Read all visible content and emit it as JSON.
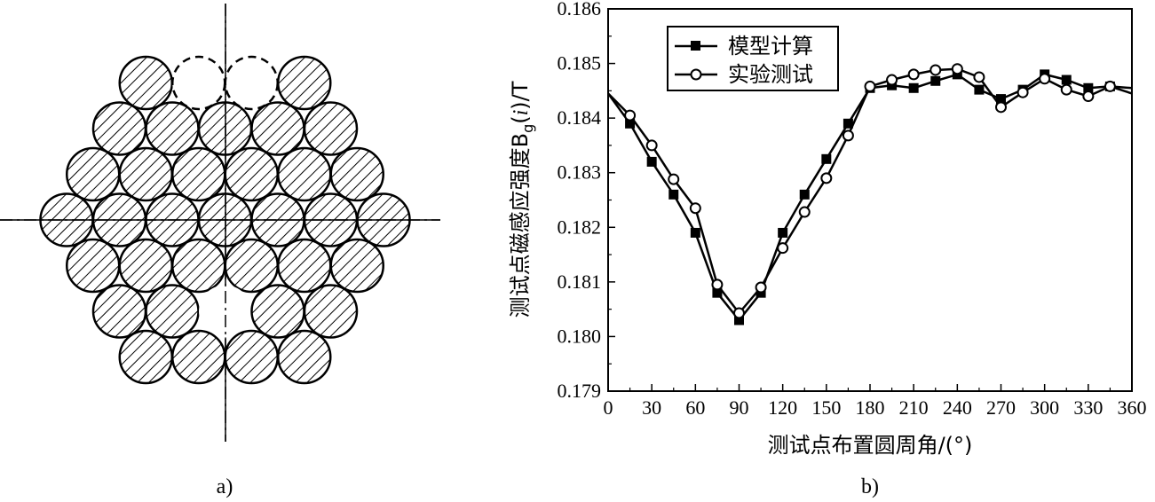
{
  "captions": {
    "left": "a)",
    "right": "b)"
  },
  "diagram": {
    "conductor_rows": [
      {
        "count": 4,
        "dashed": [
          1,
          2
        ],
        "blank": []
      },
      {
        "count": 5,
        "dashed": [],
        "blank": []
      },
      {
        "count": 6,
        "dashed": [],
        "blank": []
      },
      {
        "count": 7,
        "dashed": [],
        "blank": []
      },
      {
        "count": 6,
        "dashed": [],
        "blank": []
      },
      {
        "count": 5,
        "dashed": [],
        "blank": [
          2
        ]
      },
      {
        "count": 4,
        "dashed": [],
        "blank": []
      }
    ]
  },
  "chart_data": {
    "type": "line",
    "ylabel": "测试点磁感应强度B",
    "ylabel_sub": "g",
    "ylabel_paren_open": "(",
    "ylabel_var": "i",
    "ylabel_paren_close": ")/T",
    "xlabel": "测试点布置圆周角/(°)",
    "xlim": [
      0,
      360
    ],
    "ylim": [
      0.179,
      0.186
    ],
    "xticks": [
      0,
      30,
      60,
      90,
      120,
      150,
      180,
      210,
      240,
      270,
      300,
      330,
      360
    ],
    "xtick_labels": [
      "0",
      "30",
      "60",
      "90",
      "120",
      "150",
      "180",
      "210",
      "240",
      "270",
      "300",
      "330",
      "360"
    ],
    "yticks": [
      0.179,
      0.18,
      0.181,
      0.182,
      0.183,
      0.184,
      0.185,
      0.186
    ],
    "ytick_labels": [
      "0.179",
      "0.180",
      "0.181",
      "0.182",
      "0.183",
      "0.184",
      "0.185",
      "0.186"
    ],
    "grid": false,
    "legend_position": "top-left",
    "series": [
      {
        "name": "模型计算",
        "marker": "filled-square",
        "x": [
          0,
          15,
          30,
          45,
          60,
          75,
          90,
          105,
          120,
          135,
          150,
          165,
          180,
          195,
          210,
          225,
          240,
          255,
          270,
          285,
          300,
          315,
          330,
          345,
          360
        ],
        "y": [
          0.18445,
          0.1839,
          0.1832,
          0.1826,
          0.1819,
          0.1808,
          0.1803,
          0.1808,
          0.1819,
          0.1826,
          0.18325,
          0.1839,
          0.18455,
          0.1846,
          0.18455,
          0.18468,
          0.1848,
          0.18452,
          0.18435,
          0.18452,
          0.1848,
          0.1847,
          0.18455,
          0.18458,
          0.18455
        ]
      },
      {
        "name": "实验测试",
        "marker": "open-circle",
        "x": [
          0,
          15,
          30,
          45,
          60,
          75,
          90,
          105,
          120,
          135,
          150,
          165,
          180,
          195,
          210,
          225,
          240,
          255,
          270,
          285,
          300,
          315,
          330,
          345,
          360
        ],
        "y": [
          0.18445,
          0.18405,
          0.1835,
          0.18288,
          0.18235,
          0.18095,
          0.18043,
          0.1809,
          0.18162,
          0.18228,
          0.1829,
          0.18368,
          0.18458,
          0.1847,
          0.1848,
          0.18488,
          0.1849,
          0.18475,
          0.1842,
          0.18447,
          0.18472,
          0.18452,
          0.1844,
          0.18458,
          0.18445
        ]
      }
    ]
  }
}
